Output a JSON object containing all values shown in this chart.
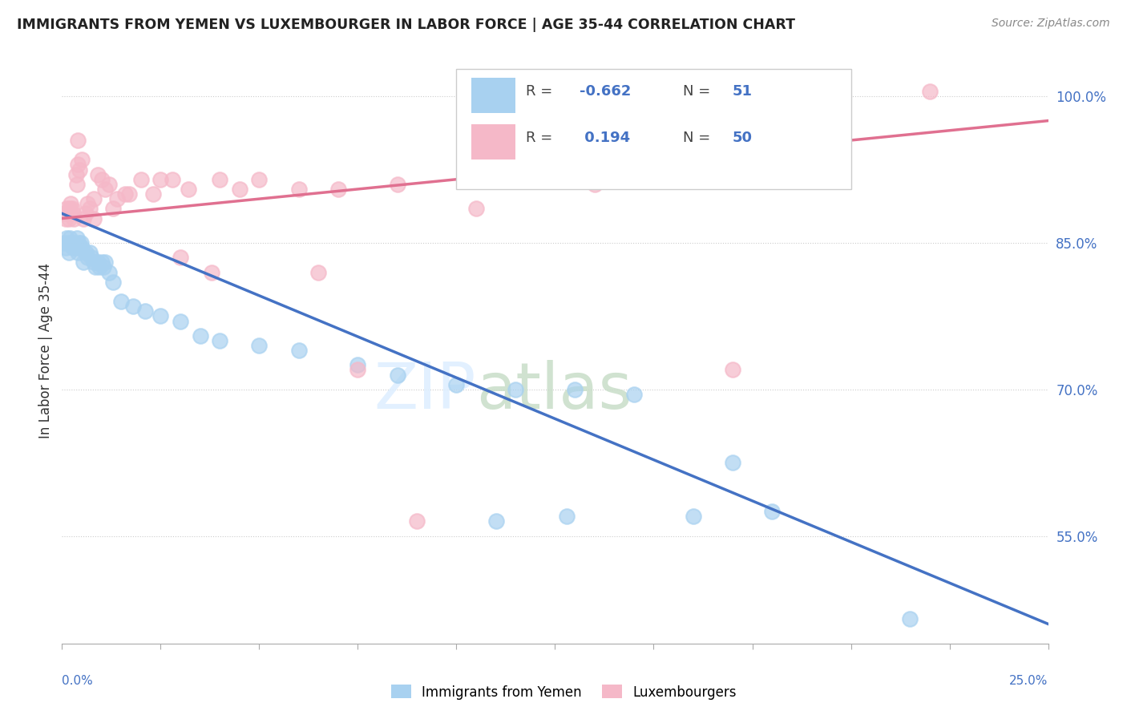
{
  "title": "IMMIGRANTS FROM YEMEN VS LUXEMBOURGER IN LABOR FORCE | AGE 35-44 CORRELATION CHART",
  "source": "Source: ZipAtlas.com",
  "ylabel": "In Labor Force | Age 35-44",
  "y_ticks": [
    55.0,
    70.0,
    85.0,
    100.0
  ],
  "y_tick_labels": [
    "55.0%",
    "70.0%",
    "85.0%",
    "100.0%"
  ],
  "x_range": [
    0.0,
    25.0
  ],
  "y_range": [
    44.0,
    104.0
  ],
  "color_blue": "#a8d1f0",
  "color_pink": "#f5b8c8",
  "color_blue_line": "#4472c4",
  "color_pink_line": "#e07090",
  "background": "#ffffff",
  "watermark_zip": "ZIP",
  "watermark_atlas": "atlas",
  "blue_line_x": [
    0.0,
    25.0
  ],
  "blue_line_y": [
    88.0,
    46.0
  ],
  "pink_line_x": [
    0.0,
    25.0
  ],
  "pink_line_y": [
    87.5,
    97.5
  ],
  "blue_x": [
    0.05,
    0.1,
    0.12,
    0.15,
    0.18,
    0.2,
    0.25,
    0.28,
    0.3,
    0.35,
    0.38,
    0.4,
    0.42,
    0.45,
    0.48,
    0.5,
    0.55,
    0.6,
    0.65,
    0.7,
    0.75,
    0.8,
    0.85,
    0.9,
    0.95,
    1.0,
    1.05,
    1.1,
    1.2,
    1.3,
    1.5,
    1.8,
    2.1,
    2.5,
    3.0,
    3.5,
    4.0,
    5.0,
    6.0,
    7.5,
    8.5,
    10.0,
    11.5,
    13.0,
    14.5,
    16.0,
    18.0,
    11.0,
    12.8,
    17.0,
    21.5
  ],
  "blue_y": [
    85.0,
    84.5,
    85.5,
    85.0,
    84.0,
    85.5,
    85.0,
    84.5,
    85.0,
    84.5,
    85.5,
    84.0,
    85.0,
    84.5,
    85.0,
    84.5,
    83.0,
    84.0,
    83.5,
    84.0,
    83.5,
    83.0,
    82.5,
    83.0,
    82.5,
    83.0,
    82.5,
    83.0,
    82.0,
    81.0,
    79.0,
    78.5,
    78.0,
    77.5,
    77.0,
    75.5,
    75.0,
    74.5,
    74.0,
    72.5,
    71.5,
    70.5,
    70.0,
    70.0,
    69.5,
    57.0,
    57.5,
    56.5,
    57.0,
    62.5,
    46.5
  ],
  "pink_x": [
    0.05,
    0.1,
    0.12,
    0.15,
    0.18,
    0.2,
    0.22,
    0.25,
    0.28,
    0.3,
    0.35,
    0.38,
    0.4,
    0.45,
    0.5,
    0.55,
    0.6,
    0.65,
    0.7,
    0.8,
    0.9,
    1.0,
    1.1,
    1.2,
    1.4,
    1.6,
    2.0,
    2.3,
    2.8,
    3.2,
    3.8,
    4.5,
    5.0,
    6.0,
    7.0,
    8.5,
    10.5,
    13.5,
    22.0,
    7.5,
    1.3,
    2.5,
    0.8,
    1.7,
    3.0,
    4.0,
    6.5,
    9.0,
    17.0,
    0.4
  ],
  "pink_y": [
    88.0,
    87.5,
    88.5,
    88.0,
    87.5,
    88.5,
    89.0,
    88.5,
    88.0,
    87.5,
    92.0,
    91.0,
    93.0,
    92.5,
    93.5,
    87.5,
    88.0,
    89.0,
    88.5,
    89.5,
    92.0,
    91.5,
    90.5,
    91.0,
    89.5,
    90.0,
    91.5,
    90.0,
    91.5,
    90.5,
    82.0,
    90.5,
    91.5,
    90.5,
    90.5,
    91.0,
    88.5,
    91.0,
    100.5,
    72.0,
    88.5,
    91.5,
    87.5,
    90.0,
    83.5,
    91.5,
    82.0,
    56.5,
    72.0,
    95.5
  ]
}
